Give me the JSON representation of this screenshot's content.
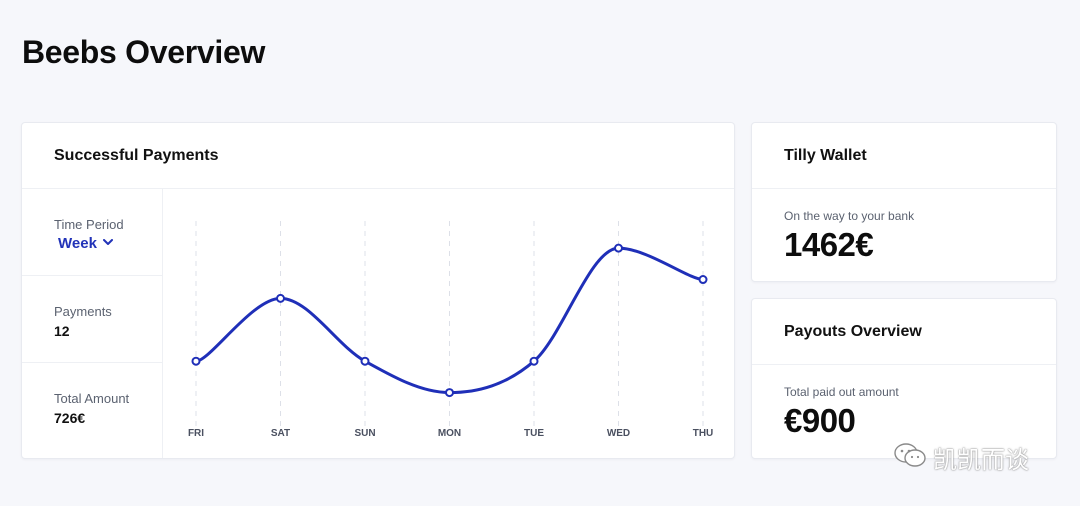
{
  "page": {
    "title": "Beebs Overview"
  },
  "payments_card": {
    "title": "Successful Payments",
    "time_period": {
      "label": "Time Period",
      "selected": "Week"
    },
    "payments": {
      "label": "Payments",
      "value": "12"
    },
    "total_amount": {
      "label": "Total Amount",
      "value": "726€"
    }
  },
  "wallet_card": {
    "title": "Tilly Wallet",
    "sub_label": "On the way to your bank",
    "value": "1462€"
  },
  "payouts_card": {
    "title": "Payouts Overview",
    "sub_label": "Total paid out amount",
    "value": "€900"
  },
  "watermark": {
    "text": "凯凯而谈",
    "icon": "wechat-icon"
  },
  "colors": {
    "accent": "#1f2fb8",
    "grid": "#dde0e8"
  },
  "chart_data": {
    "type": "line",
    "categories": [
      "FRI",
      "SAT",
      "SUN",
      "MON",
      "TUE",
      "WED",
      "THU"
    ],
    "values": [
      1.0,
      2.0,
      1.0,
      0.5,
      1.0,
      2.8,
      2.3
    ],
    "ylim": [
      0,
      3.2
    ],
    "grid": "vertical-dashed",
    "title": "",
    "xlabel": "",
    "ylabel": ""
  }
}
